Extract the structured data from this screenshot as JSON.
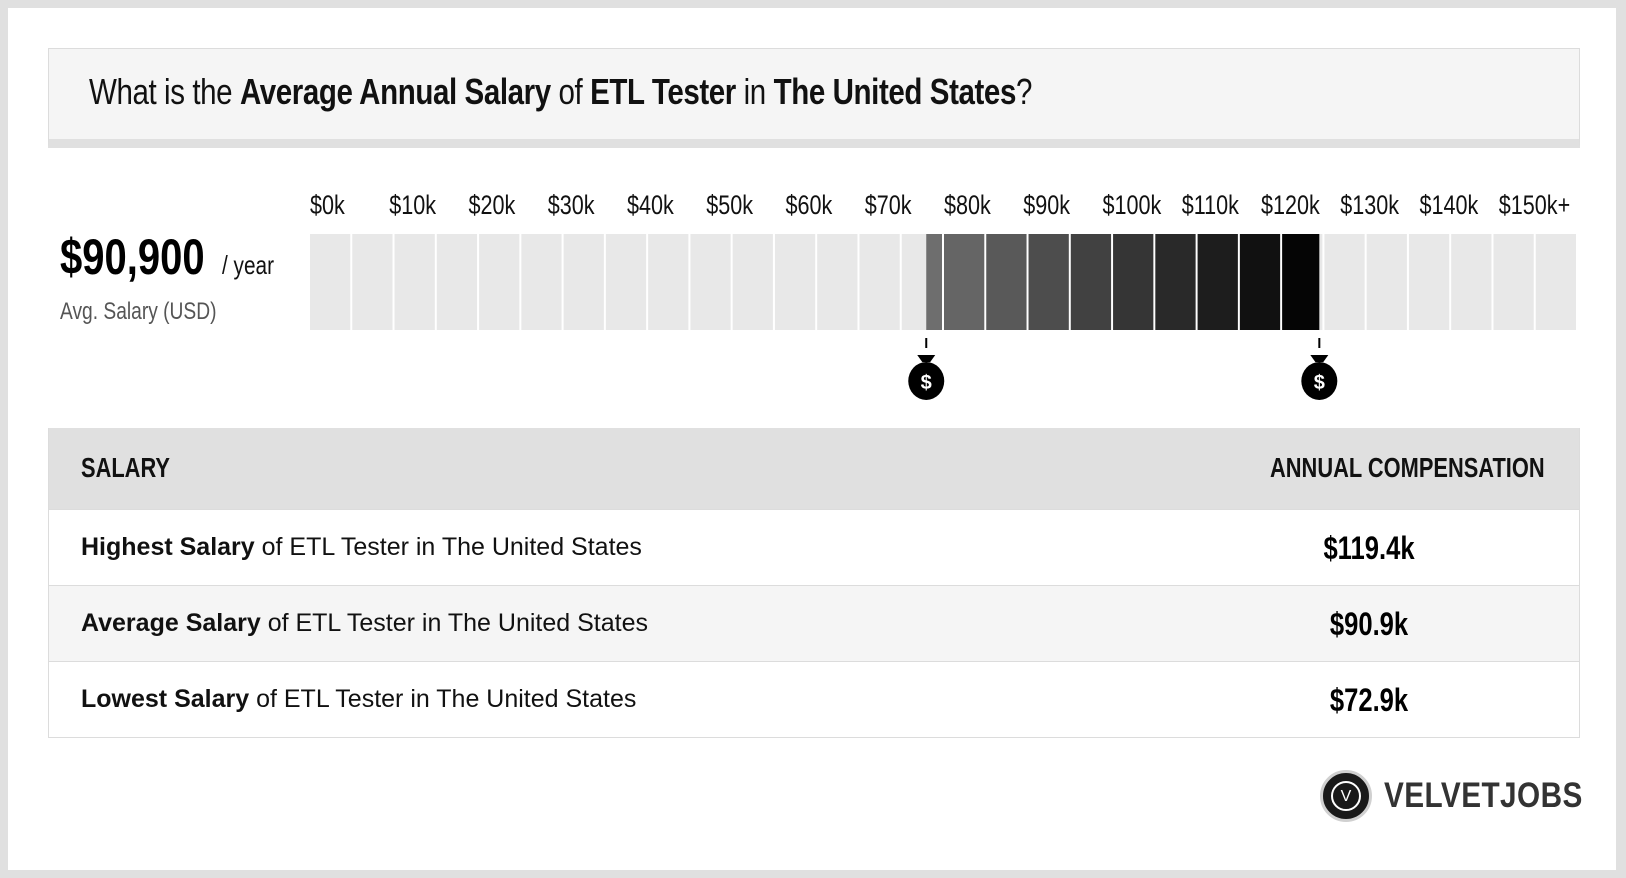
{
  "title": {
    "prefix": "What is the ",
    "bold1": "Average Annual Salary",
    "mid1": " of ",
    "bold2": "ETL Tester",
    "mid2": " in ",
    "bold3": "The United States",
    "suffix": "?"
  },
  "average": {
    "value": "$90,900",
    "per": "/ year",
    "label": "Avg. Salary (USD)"
  },
  "chart_data": {
    "type": "bar",
    "tick_labels": [
      "$0k",
      "$10k",
      "$20k",
      "$30k",
      "$40k",
      "$50k",
      "$60k",
      "$70k",
      "$80k",
      "$90k",
      "$100k",
      "$110k",
      "$120k",
      "$130k",
      "$140k",
      "$150k+"
    ],
    "range_low": 72.9,
    "range_high": 119.4,
    "marker_icons": [
      "money-bag-icon",
      "money-bag-icon"
    ],
    "marker_symbol": "$",
    "xlim": [
      0,
      150
    ],
    "inactive_color": "#e8e8e8",
    "active_color_start": "#707070",
    "active_color_end": "#000000"
  },
  "table": {
    "header_left": "SALARY",
    "header_right": "ANNUAL COMPENSATION",
    "rows": [
      {
        "bold": "Highest Salary",
        "rest": " of ETL Tester in The United States",
        "value": "$119.4k"
      },
      {
        "bold": "Average Salary",
        "rest": " of ETL Tester in The United States",
        "value": "$90.9k"
      },
      {
        "bold": "Lowest Salary",
        "rest": " of ETL Tester in The United States",
        "value": "$72.9k"
      }
    ]
  },
  "logo": {
    "letter": "V",
    "text": "VELVETJOBS"
  }
}
